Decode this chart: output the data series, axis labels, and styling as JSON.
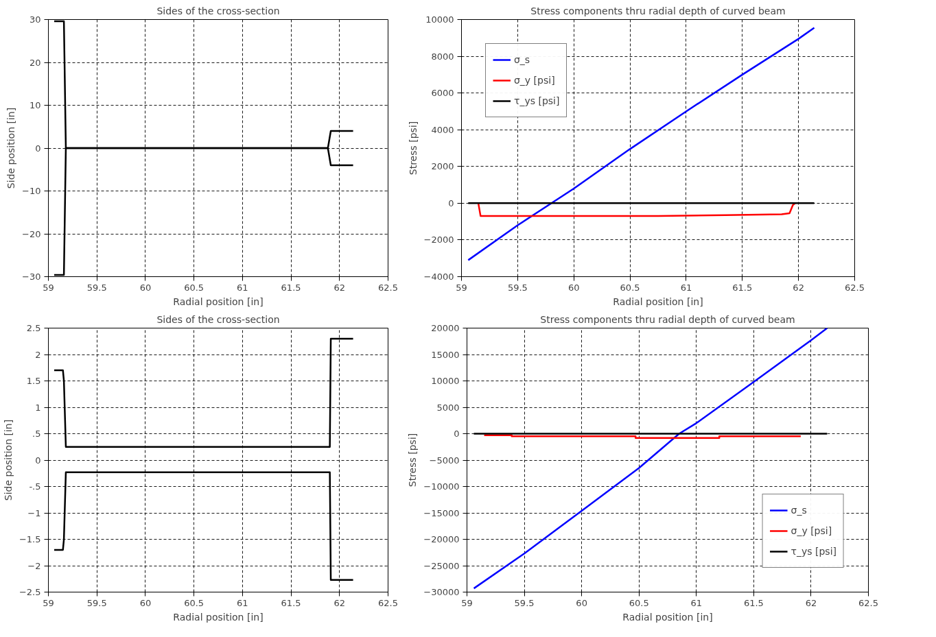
{
  "chart_data": [
    {
      "type": "line",
      "title": "Sides of the cross-section",
      "xlabel": "Radial position [in]",
      "ylabel": "Side position [in]",
      "xlim": [
        59,
        62.5
      ],
      "ylim": [
        -30,
        30
      ],
      "xticks": [
        59,
        59.5,
        60,
        60.5,
        61,
        61.5,
        62,
        62.5
      ],
      "yticks": [
        -30,
        -20,
        -10,
        0,
        10,
        20,
        30
      ],
      "grid": true,
      "legend": false,
      "series": [
        {
          "color": "#000000",
          "x": [
            59.06,
            59.16,
            59.18,
            61.88,
            61.91,
            62.14
          ],
          "values": [
            29.6,
            29.6,
            0,
            0,
            4,
            4
          ]
        },
        {
          "color": "#000000",
          "x": [
            59.06,
            59.16,
            59.18,
            61.88,
            61.91,
            62.14
          ],
          "values": [
            -29.6,
            -29.6,
            0,
            0,
            -4,
            -4
          ]
        }
      ]
    },
    {
      "type": "line",
      "title": "Stress components thru radial depth of curved beam",
      "xlabel": "Radial position [in]",
      "ylabel": "Stress [psi]",
      "xlim": [
        59,
        62.5
      ],
      "ylim": [
        -4000,
        10000
      ],
      "xticks": [
        59,
        59.5,
        60,
        60.5,
        61,
        61.5,
        62,
        62.5
      ],
      "yticks": [
        -4000,
        -2000,
        0,
        2000,
        4000,
        6000,
        8000,
        10000
      ],
      "grid": true,
      "legend": "top left",
      "series": [
        {
          "name": "σ_s",
          "color": "#0000ff",
          "x": [
            59.06,
            59.5,
            60,
            60.5,
            61,
            61.5,
            62,
            62.14
          ],
          "values": [
            -3100,
            -1200,
            800,
            2950,
            5000,
            7000,
            8950,
            9550
          ]
        },
        {
          "name": "σ_y [psi]",
          "color": "#ff0000",
          "x": [
            59.15,
            59.17,
            60.75,
            61.35,
            61.85,
            61.92,
            61.95,
            61.97
          ],
          "values": [
            0,
            -700,
            -700,
            -650,
            -600,
            -550,
            -100,
            0
          ]
        },
        {
          "name": "τ_ys [psi]",
          "color": "#000000",
          "x": [
            59.06,
            62.14
          ],
          "values": [
            0,
            0
          ]
        }
      ]
    },
    {
      "type": "line",
      "title": "Sides of the cross-section",
      "xlabel": "Radial position [in]",
      "ylabel": "Side position [in]",
      "xlim": [
        59,
        62.5
      ],
      "ylim": [
        -2.5,
        2.5
      ],
      "xticks": [
        59,
        59.5,
        60,
        60.5,
        61,
        61.5,
        62,
        62.5
      ],
      "yticks": [
        -2.5,
        -2,
        -1.5,
        -1,
        {
          "value": -0.5,
          "label": "-.5"
        },
        0,
        {
          "value": 0.5,
          "label": ".5"
        },
        1,
        1.5,
        2,
        2.5
      ],
      "grid": true,
      "legend": false,
      "series": [
        {
          "color": "#000000",
          "x": [
            59.06,
            59.15,
            59.16,
            59.18,
            61.9,
            61.91,
            62.14
          ],
          "values": [
            1.7,
            1.7,
            1.5,
            0.25,
            0.25,
            2.3,
            2.3
          ]
        },
        {
          "color": "#000000",
          "x": [
            59.06,
            59.15,
            59.16,
            59.18,
            61.9,
            61.91,
            62.14
          ],
          "values": [
            -1.7,
            -1.7,
            -1.5,
            -0.23,
            -0.23,
            -2.27,
            -2.27
          ]
        }
      ]
    },
    {
      "type": "line",
      "title": "Stress components thru radial depth of curved beam",
      "xlabel": "Radial position [in]",
      "ylabel": "Stress [psi]",
      "xlim": [
        59,
        62.5
      ],
      "ylim": [
        -30000,
        20000
      ],
      "xticks": [
        59,
        59.5,
        60,
        60.5,
        61,
        61.5,
        62,
        62.5
      ],
      "yticks": [
        -30000,
        -25000,
        -20000,
        -15000,
        -10000,
        -5000,
        0,
        5000,
        10000,
        15000,
        20000
      ],
      "grid": true,
      "legend": "bottom right",
      "series": [
        {
          "name": "σ_s",
          "color": "#0000ff",
          "x": [
            59.06,
            59.5,
            60,
            60.5,
            60.85,
            61,
            61.5,
            62,
            62.14
          ],
          "values": [
            -29300,
            -22700,
            -14600,
            -6500,
            0,
            2000,
            9800,
            17700,
            20000
          ]
        },
        {
          "name": "σ_y [psi]",
          "color": "#ff0000",
          "x": [
            59.15,
            59.39,
            59.39,
            60.47,
            60.47,
            61.2,
            61.2,
            61.91
          ],
          "values": [
            -300,
            -300,
            -500,
            -500,
            -800,
            -800,
            -500,
            -500
          ]
        },
        {
          "name": "τ_ys [psi]",
          "color": "#000000",
          "x": [
            59.06,
            62.14
          ],
          "values": [
            0,
            0
          ]
        }
      ]
    }
  ]
}
